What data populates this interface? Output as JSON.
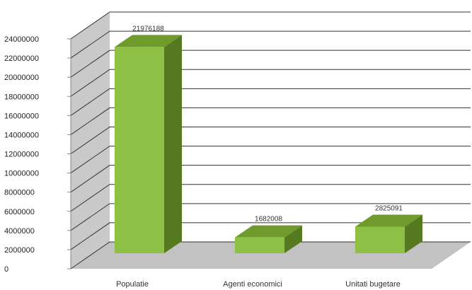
{
  "chart_data": {
    "type": "bar",
    "style": "3d-column",
    "categories": [
      "Populatie",
      "Agenti economici",
      "Unitati bugetare"
    ],
    "values": [
      21976188,
      1682008,
      2825091
    ],
    "data_labels": [
      "21976188",
      "1682008",
      "2825091"
    ],
    "ylim": [
      0,
      24000000
    ],
    "yticks": [
      "0",
      "2000000",
      "4000000",
      "6000000",
      "8000000",
      "10000000",
      "12000000",
      "14000000",
      "16000000",
      "18000000",
      "20000000",
      "22000000",
      "24000000"
    ],
    "grid": true,
    "legend": "none",
    "colors": {
      "bar_front": "#8dc044",
      "bar_top": "#6f9b2c",
      "bar_side": "#567a20",
      "wall": "#ffffff",
      "side_wall": "#c9c9c9",
      "floor": "#c2c2c2",
      "grid": "#333333"
    }
  }
}
